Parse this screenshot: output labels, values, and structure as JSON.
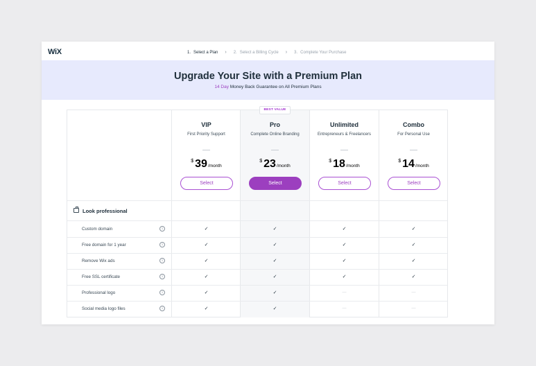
{
  "brand": {
    "logo": "WiX"
  },
  "steps": [
    {
      "num": "1.",
      "label": "Select a Plan"
    },
    {
      "num": "2.",
      "label": "Select a Billing Cycle"
    },
    {
      "num": "3.",
      "label": "Complete Your Purchase"
    }
  ],
  "banner": {
    "title": "Upgrade Your Site with a Premium Plan",
    "highlight": "14 Day",
    "subtitle": "Money Back Guarantee on All Premium Plans"
  },
  "badge": "BEST VALUE",
  "plans": [
    {
      "name": "VIP",
      "desc": "First Priority Support",
      "currency": "$",
      "amount": "39",
      "per": "/month",
      "button": "Select"
    },
    {
      "name": "Pro",
      "desc": "Complete Online Branding",
      "currency": "$",
      "amount": "23",
      "per": "/month",
      "button": "Select"
    },
    {
      "name": "Unlimited",
      "desc": "Entrepreneurs & Freelancers",
      "currency": "$",
      "amount": "18",
      "per": "/month",
      "button": "Select"
    },
    {
      "name": "Combo",
      "desc": "For Personal Use",
      "currency": "$",
      "amount": "14",
      "per": "/month",
      "button": "Select"
    }
  ],
  "section": {
    "title": "Look professional",
    "icon": "briefcase-icon"
  },
  "features": [
    {
      "label": "Custom domain",
      "cells": [
        "✓",
        "✓",
        "✓",
        "✓"
      ]
    },
    {
      "label": "Free domain for 1 year",
      "cells": [
        "✓",
        "✓",
        "✓",
        "✓"
      ]
    },
    {
      "label": "Remove Wix ads",
      "cells": [
        "✓",
        "✓",
        "✓",
        "✓"
      ]
    },
    {
      "label": "Free SSL certificate",
      "cells": [
        "✓",
        "✓",
        "✓",
        "✓"
      ]
    },
    {
      "label": "Professional logo",
      "cells": [
        "✓",
        "✓",
        "—",
        "—"
      ]
    },
    {
      "label": "Social media logo files",
      "cells": [
        "✓",
        "✓",
        "—",
        "—"
      ]
    }
  ],
  "info_glyph": "i",
  "chevron": "›",
  "colors": {
    "accent": "#9c3fbf",
    "banner_bg": "#e7eafd",
    "page_bg": "#ececee"
  }
}
